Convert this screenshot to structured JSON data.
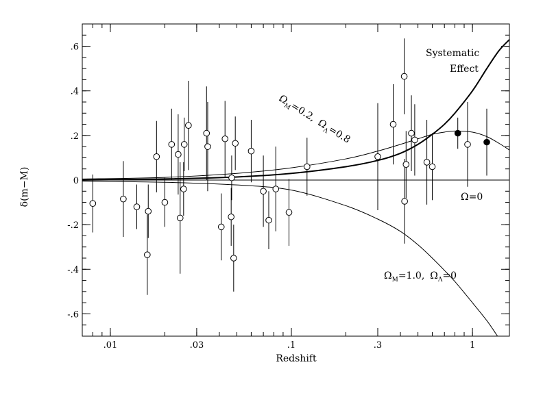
{
  "chart_data": {
    "type": "scatter",
    "xlabel": "Redshift",
    "ylabel": "δ(m−M)",
    "xscale": "log",
    "xlim": [
      0.007,
      1.6
    ],
    "ylim": [
      -0.7,
      0.7
    ],
    "x_ticks": [
      {
        "value": 0.01,
        "label": ".01"
      },
      {
        "value": 0.03,
        "label": ".03"
      },
      {
        "value": 0.1,
        "label": ".1"
      },
      {
        "value": 0.3,
        "label": ".3"
      },
      {
        "value": 1,
        "label": "1"
      }
    ],
    "y_ticks": [
      {
        "value": 0.6,
        "label": ".6"
      },
      {
        "value": 0.4,
        "label": ".4"
      },
      {
        "value": 0.2,
        "label": ".2"
      },
      {
        "value": 0,
        "label": "0"
      },
      {
        "value": -0.2,
        "label": "-.2"
      },
      {
        "value": -0.4,
        "label": "-.4"
      },
      {
        "value": -0.6,
        "label": "-.6"
      }
    ],
    "points_open": [
      {
        "x": 0.008,
        "y": -0.105,
        "err": 0.13
      },
      {
        "x": 0.0118,
        "y": -0.085,
        "err": 0.17
      },
      {
        "x": 0.014,
        "y": -0.12,
        "err": 0.1
      },
      {
        "x": 0.016,
        "y": -0.335,
        "err": 0.18
      },
      {
        "x": 0.0162,
        "y": -0.14,
        "err": 0.12
      },
      {
        "x": 0.018,
        "y": 0.105,
        "err": 0.16
      },
      {
        "x": 0.02,
        "y": -0.1,
        "err": 0.11
      },
      {
        "x": 0.0218,
        "y": 0.16,
        "err": 0.16
      },
      {
        "x": 0.0237,
        "y": 0.115,
        "err": 0.18
      },
      {
        "x": 0.0243,
        "y": -0.17,
        "err": 0.25
      },
      {
        "x": 0.0254,
        "y": -0.04,
        "err": 0.12
      },
      {
        "x": 0.0256,
        "y": 0.16,
        "err": 0.12
      },
      {
        "x": 0.027,
        "y": 0.245,
        "err": 0.2
      },
      {
        "x": 0.034,
        "y": 0.21,
        "err": 0.21
      },
      {
        "x": 0.0345,
        "y": 0.15,
        "err": 0.2
      },
      {
        "x": 0.041,
        "y": -0.21,
        "err": 0.15
      },
      {
        "x": 0.043,
        "y": 0.185,
        "err": 0.17
      },
      {
        "x": 0.0465,
        "y": -0.165,
        "err": 0.13
      },
      {
        "x": 0.0468,
        "y": 0.01,
        "err": 0.1
      },
      {
        "x": 0.048,
        "y": -0.35,
        "err": 0.15
      },
      {
        "x": 0.049,
        "y": 0.165,
        "err": 0.12
      },
      {
        "x": 0.06,
        "y": 0.13,
        "err": 0.14
      },
      {
        "x": 0.07,
        "y": -0.05,
        "err": 0.16
      },
      {
        "x": 0.075,
        "y": -0.18,
        "err": 0.13
      },
      {
        "x": 0.082,
        "y": -0.04,
        "err": 0.19
      },
      {
        "x": 0.097,
        "y": -0.145,
        "err": 0.15
      },
      {
        "x": 0.122,
        "y": 0.06,
        "err": 0.13
      },
      {
        "x": 0.3,
        "y": 0.105,
        "err": 0.24
      },
      {
        "x": 0.365,
        "y": 0.25,
        "err": 0.18
      },
      {
        "x": 0.42,
        "y": 0.465,
        "err": 0.17
      },
      {
        "x": 0.422,
        "y": -0.095,
        "err": 0.19
      },
      {
        "x": 0.43,
        "y": 0.07,
        "err": 0.15
      },
      {
        "x": 0.46,
        "y": 0.21,
        "err": 0.17
      },
      {
        "x": 0.48,
        "y": 0.18,
        "err": 0.16
      },
      {
        "x": 0.56,
        "y": 0.08,
        "err": 0.19
      },
      {
        "x": 0.6,
        "y": 0.06,
        "err": 0.15
      },
      {
        "x": 0.94,
        "y": 0.16,
        "err": 0.19
      }
    ],
    "points_filled": [
      {
        "x": 0.83,
        "y": 0.21,
        "err": 0.07
      },
      {
        "x": 1.2,
        "y": 0.17,
        "err": 0.15
      }
    ],
    "curves": [
      {
        "name": "Systematic Effect",
        "style": "thick",
        "points": [
          [
            0.007,
            0.0
          ],
          [
            0.02,
            0.005
          ],
          [
            0.05,
            0.014
          ],
          [
            0.1,
            0.03
          ],
          [
            0.2,
            0.06
          ],
          [
            0.3,
            0.088
          ],
          [
            0.4,
            0.12
          ],
          [
            0.5,
            0.16
          ],
          [
            0.6,
            0.205
          ],
          [
            0.7,
            0.25
          ],
          [
            0.8,
            0.3
          ],
          [
            1.0,
            0.4
          ],
          [
            1.2,
            0.5
          ],
          [
            1.4,
            0.58
          ],
          [
            1.6,
            0.63
          ]
        ]
      },
      {
        "name": "ΩM=0.2, ΩΛ=0.8",
        "style": "thin",
        "points": [
          [
            0.007,
            0.005
          ],
          [
            0.02,
            0.012
          ],
          [
            0.05,
            0.03
          ],
          [
            0.1,
            0.055
          ],
          [
            0.2,
            0.095
          ],
          [
            0.3,
            0.13
          ],
          [
            0.4,
            0.16
          ],
          [
            0.5,
            0.185
          ],
          [
            0.6,
            0.205
          ],
          [
            0.7,
            0.215
          ],
          [
            0.8,
            0.22
          ],
          [
            1.0,
            0.215
          ],
          [
            1.2,
            0.195
          ],
          [
            1.4,
            0.165
          ],
          [
            1.6,
            0.135
          ]
        ]
      },
      {
        "name": "ΩM=1.0, ΩΛ=0",
        "style": "thin",
        "points": [
          [
            0.007,
            -0.005
          ],
          [
            0.02,
            -0.01
          ],
          [
            0.05,
            -0.022
          ],
          [
            0.1,
            -0.045
          ],
          [
            0.2,
            -0.115
          ],
          [
            0.3,
            -0.175
          ],
          [
            0.4,
            -0.23
          ],
          [
            0.5,
            -0.29
          ],
          [
            0.6,
            -0.35
          ],
          [
            0.7,
            -0.405
          ],
          [
            0.8,
            -0.455
          ],
          [
            1.0,
            -0.55
          ],
          [
            1.2,
            -0.63
          ],
          [
            1.35,
            -0.69
          ],
          [
            1.4,
            -0.71
          ]
        ]
      },
      {
        "name": "Ω=0",
        "style": "thin",
        "points": [
          [
            0.007,
            0
          ],
          [
            1.6,
            0
          ]
        ]
      }
    ],
    "annotations": {
      "systematic_line1": "Systematic",
      "systematic_line2": "Effect",
      "omega_zero": "Ω=0",
      "flat_model": {
        "om": "Ω",
        "om_sub": "M",
        "om_val": "=0.2,",
        "ol": "Ω",
        "ol_sub": "Λ",
        "ol_val": "=0.8"
      },
      "einstein_model": {
        "om": "Ω",
        "om_sub": "M",
        "om_val": "=1.0,",
        "ol": "Ω",
        "ol_sub": "Λ",
        "ol_val": "=0"
      }
    }
  }
}
